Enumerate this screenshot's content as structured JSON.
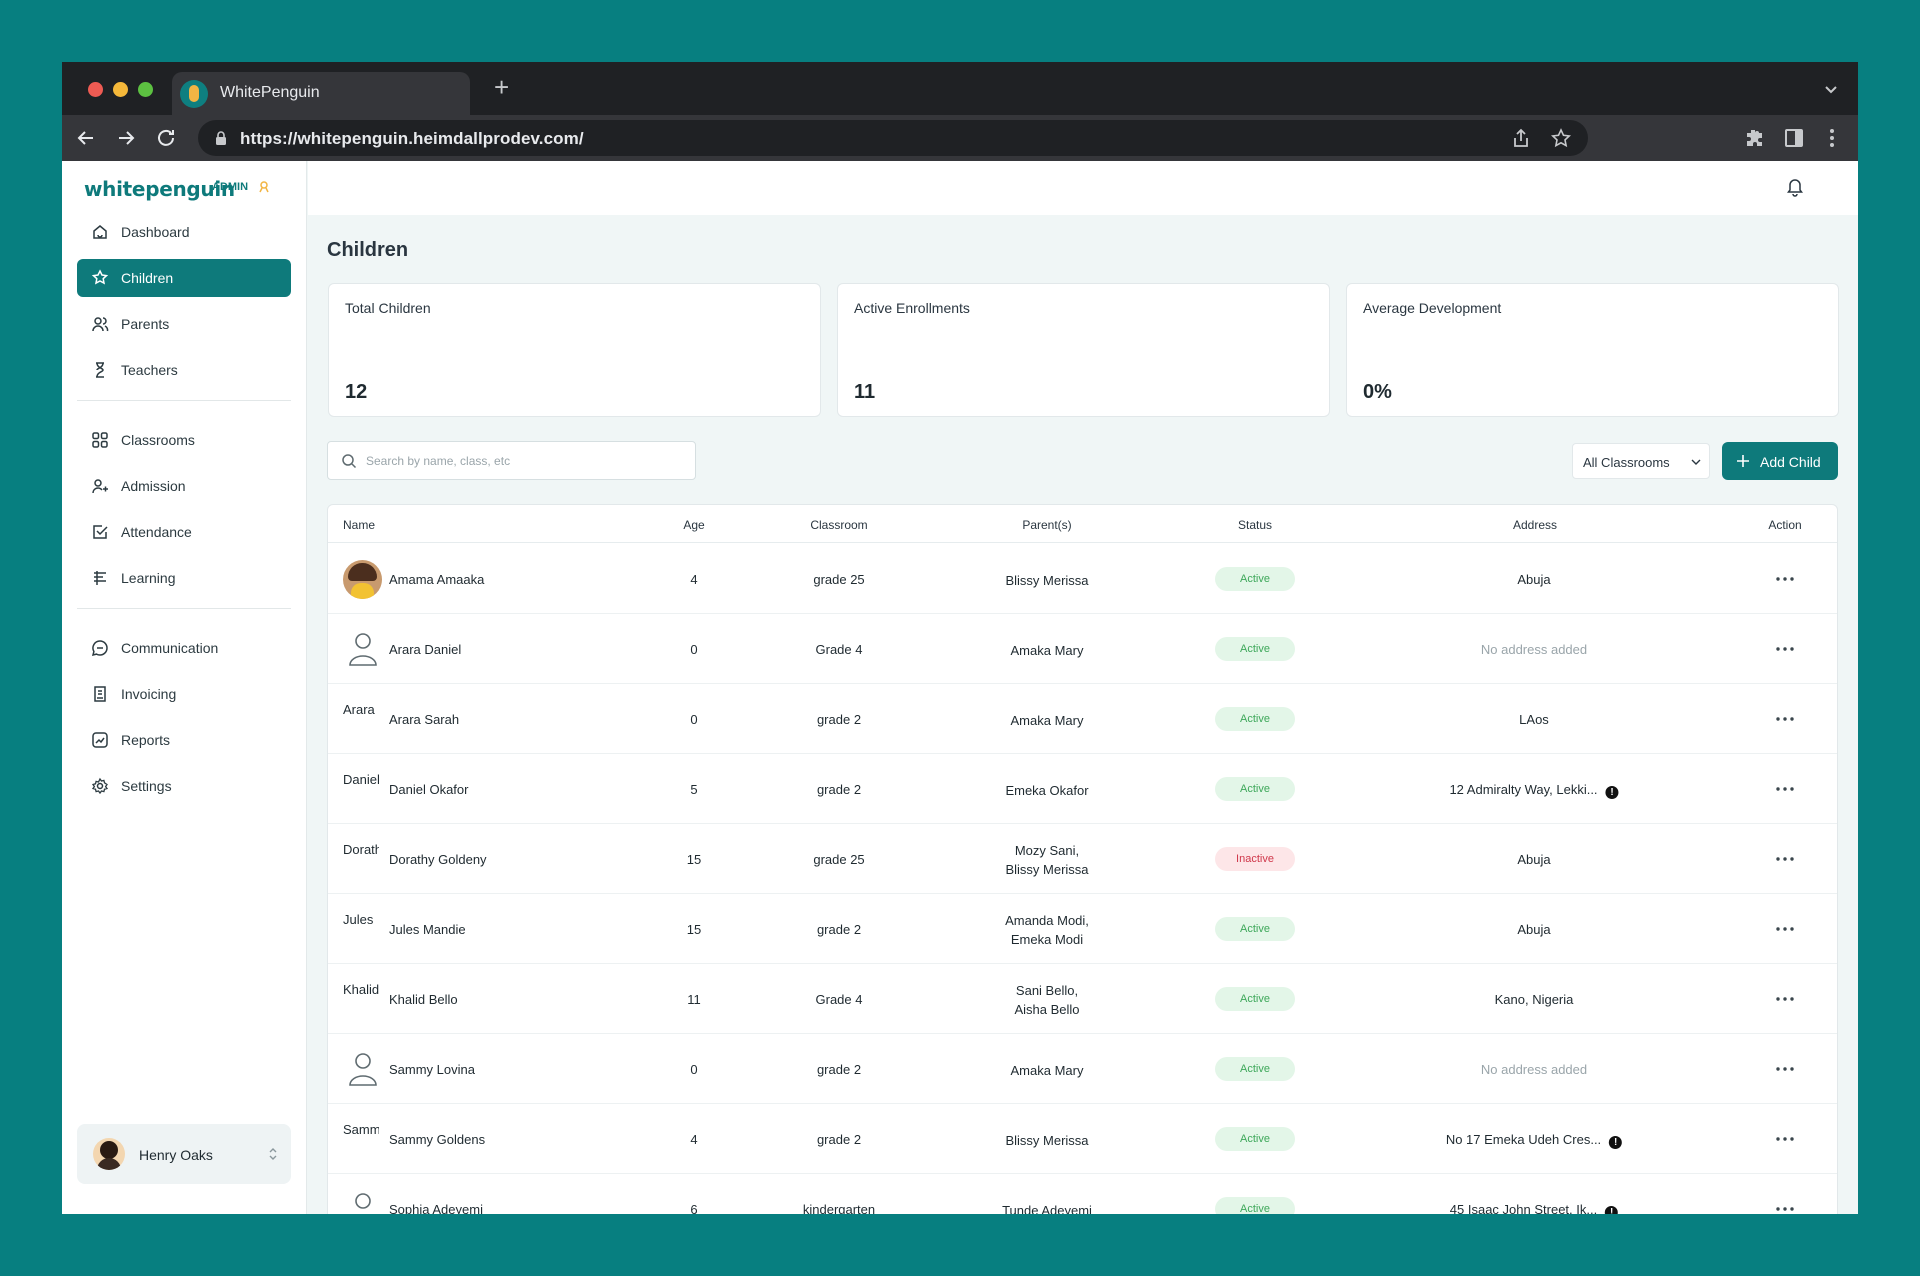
{
  "browser": {
    "tab_title": "WhitePenguin",
    "url": "https://whitepenguin.heimdallprodev.com/"
  },
  "brand": {
    "logo": "whitepenguin",
    "badge": "ADMIN",
    "accent_color": "#0e7a7b"
  },
  "sidebar": {
    "groups": [
      [
        {
          "label": "Dashboard",
          "icon": "dashboard-icon"
        },
        {
          "label": "Children",
          "icon": "children-icon",
          "active": true
        },
        {
          "label": "Parents",
          "icon": "parents-icon"
        },
        {
          "label": "Teachers",
          "icon": "teachers-icon"
        }
      ],
      [
        {
          "label": "Classrooms",
          "icon": "classrooms-icon"
        },
        {
          "label": "Admission",
          "icon": "admission-icon"
        },
        {
          "label": "Attendance",
          "icon": "attendance-icon"
        },
        {
          "label": "Learning",
          "icon": "learning-icon"
        }
      ],
      [
        {
          "label": "Communication",
          "icon": "communication-icon"
        },
        {
          "label": "Invoicing",
          "icon": "invoicing-icon"
        },
        {
          "label": "Reports",
          "icon": "reports-icon"
        },
        {
          "label": "Settings",
          "icon": "settings-icon"
        }
      ]
    ],
    "user": {
      "name": "Henry Oaks"
    }
  },
  "page": {
    "title": "Children",
    "stats": [
      {
        "label": "Total Children",
        "value": "12"
      },
      {
        "label": "Active Enrollments",
        "value": "11"
      },
      {
        "label": "Average Development",
        "value": "0%"
      }
    ],
    "search_placeholder": "Search by name, class, etc",
    "classroom_filter": "All Classrooms",
    "add_button": "Add Child"
  },
  "table": {
    "columns": [
      "Name",
      "Age",
      "Classroom",
      "Parent(s)",
      "Status",
      "Address",
      "Action"
    ],
    "rows": [
      {
        "avatar": "photo",
        "avatar_alt": "",
        "name": "Amama Amaaka",
        "age": "4",
        "classroom": "grade 25",
        "parents": [
          "Blissy Merissa"
        ],
        "status": "Active",
        "address": "Abuja",
        "address_info": false
      },
      {
        "avatar": "person",
        "avatar_alt": "",
        "name": "Arara Daniel",
        "age": "0",
        "classroom": "Grade 4",
        "parents": [
          "Amaka Mary"
        ],
        "status": "Active",
        "address": "No address added",
        "address_muted": true,
        "address_info": false
      },
      {
        "avatar": "alt",
        "avatar_alt": "Arara",
        "name": "Arara Sarah",
        "age": "0",
        "classroom": "grade 2",
        "parents": [
          "Amaka Mary"
        ],
        "status": "Active",
        "address": "LAos",
        "address_info": false
      },
      {
        "avatar": "alt",
        "avatar_alt": "Daniel",
        "name": "Daniel Okafor",
        "age": "5",
        "classroom": "grade 2",
        "parents": [
          "Emeka Okafor"
        ],
        "status": "Active",
        "address": "12 Admiralty Way, Lekki...",
        "address_info": true
      },
      {
        "avatar": "alt",
        "avatar_alt": "Dorathy",
        "name": "Dorathy Goldeny",
        "age": "15",
        "classroom": "grade 25",
        "parents": [
          "Mozy Sani,",
          "Blissy Merissa"
        ],
        "status": "Inactive",
        "address": "Abuja",
        "address_info": false
      },
      {
        "avatar": "alt",
        "avatar_alt": "Jules",
        "name": "Jules Mandie",
        "age": "15",
        "classroom": "grade 2",
        "parents": [
          "Amanda Modi,",
          "Emeka Modi"
        ],
        "status": "Active",
        "address": "Abuja",
        "address_info": false
      },
      {
        "avatar": "alt",
        "avatar_alt": "Khalid",
        "name": "Khalid Bello",
        "age": "11",
        "classroom": "Grade 4",
        "parents": [
          "Sani Bello,",
          "Aisha Bello"
        ],
        "status": "Active",
        "address": "Kano, Nigeria",
        "address_info": false
      },
      {
        "avatar": "person",
        "avatar_alt": "",
        "name": "Sammy Lovina",
        "age": "0",
        "classroom": "grade 2",
        "parents": [
          "Amaka Mary"
        ],
        "status": "Active",
        "address": "No address added",
        "address_muted": true,
        "address_info": false
      },
      {
        "avatar": "alt",
        "avatar_alt": "Sammy",
        "name": "Sammy Goldens",
        "age": "4",
        "classroom": "grade 2",
        "parents": [
          "Blissy Merissa"
        ],
        "status": "Active",
        "address": "No 17 Emeka Udeh Cres...",
        "address_info": true
      },
      {
        "avatar": "person",
        "avatar_alt": "",
        "name": "Sophia Adeyemi",
        "age": "6",
        "classroom": "kindergarten",
        "parents": [
          "Tunde Adeyemi"
        ],
        "status": "Active",
        "address": "45 Isaac John Street, Ik...",
        "address_info": true
      }
    ]
  }
}
